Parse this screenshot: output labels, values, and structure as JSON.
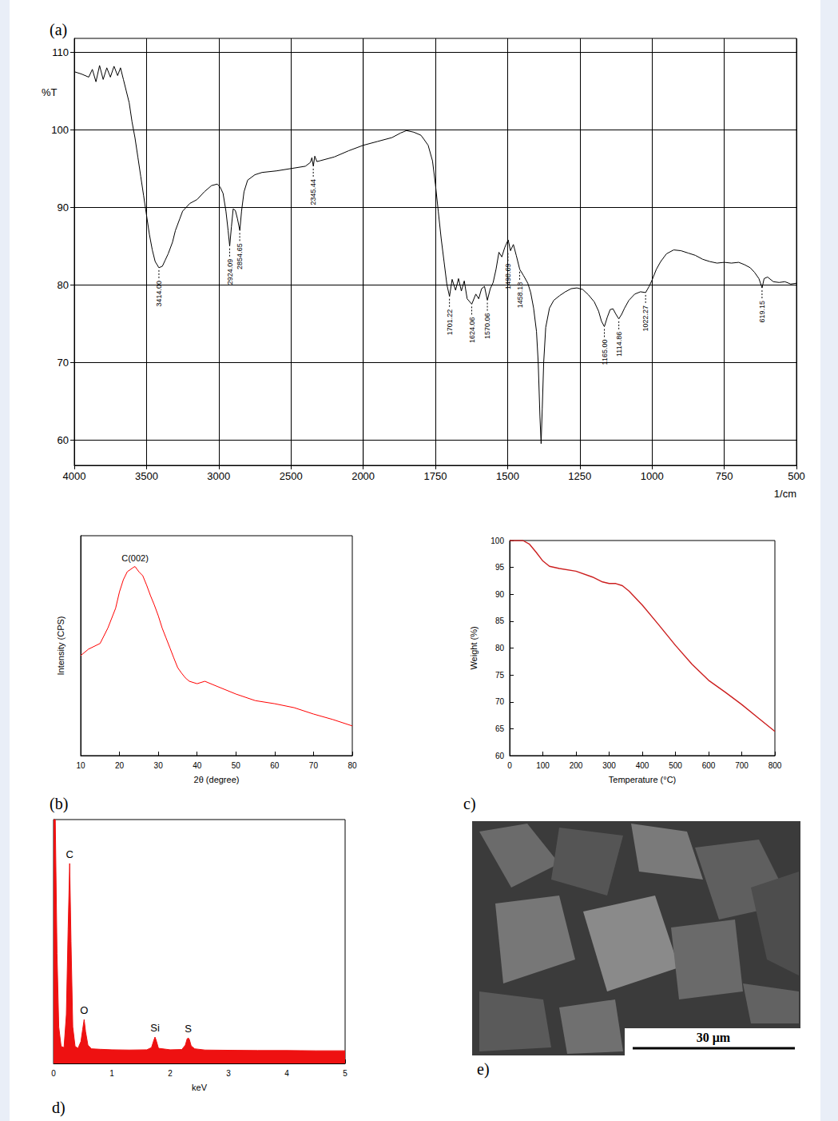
{
  "chart_data": [
    {
      "type": "line",
      "title": "(a)",
      "xlabel": "1/cm",
      "ylabel": "%T",
      "color": "#000000",
      "grid": true,
      "x": [
        4000,
        3950,
        3900,
        3875,
        3850,
        3825,
        3800,
        3775,
        3750,
        3725,
        3700,
        3680,
        3660,
        3640,
        3620,
        3600,
        3580,
        3560,
        3540,
        3520,
        3500,
        3480,
        3460,
        3440,
        3414,
        3390,
        3370,
        3350,
        3320,
        3300,
        3270,
        3250,
        3200,
        3150,
        3100,
        3050,
        3010,
        2990,
        2970,
        2950,
        2935,
        2924,
        2912,
        2900,
        2885,
        2870,
        2854,
        2842,
        2825,
        2800,
        2750,
        2700,
        2600,
        2500,
        2400,
        2365,
        2355,
        2345,
        2335,
        2320,
        2300,
        2200,
        2100,
        2000,
        1950,
        1900,
        1870,
        1850,
        1825,
        1800,
        1790,
        1775,
        1760,
        1750,
        1740,
        1730,
        1720,
        1710,
        1701,
        1692,
        1680,
        1670,
        1660,
        1650,
        1640,
        1624,
        1610,
        1600,
        1590,
        1580,
        1570,
        1560,
        1550,
        1540,
        1530,
        1520,
        1510,
        1498,
        1490,
        1480,
        1470,
        1458,
        1445,
        1430,
        1420,
        1410,
        1400,
        1394,
        1388,
        1384,
        1380,
        1375,
        1368,
        1355,
        1340,
        1320,
        1300,
        1280,
        1260,
        1240,
        1220,
        1200,
        1185,
        1175,
        1165,
        1155,
        1145,
        1135,
        1125,
        1115,
        1105,
        1095,
        1080,
        1060,
        1040,
        1022,
        1010,
        1000,
        985,
        970,
        950,
        925,
        900,
        875,
        850,
        825,
        800,
        775,
        750,
        725,
        700,
        680,
        660,
        645,
        630,
        619,
        612,
        600,
        580,
        560,
        540,
        520,
        500
      ],
      "values": [
        107.5,
        107.2,
        106.8,
        107.8,
        106.2,
        108.3,
        106.5,
        108,
        106.8,
        108.2,
        107,
        108,
        106.5,
        105,
        103.5,
        101,
        99,
        96.5,
        94,
        91.5,
        89,
        86.5,
        84.5,
        83,
        82.2,
        82.4,
        83.2,
        84,
        85.5,
        87,
        88.5,
        89.5,
        90.5,
        91,
        92,
        92.8,
        93,
        92.6,
        91.8,
        89.5,
        87,
        85,
        87.5,
        89.8,
        89.6,
        88.5,
        87,
        89.5,
        92,
        93.5,
        94.2,
        94.5,
        94.7,
        95,
        95.3,
        95.8,
        96.4,
        95.3,
        96.6,
        95.9,
        96,
        96.5,
        97.3,
        98,
        98.5,
        99,
        99.6,
        99.9,
        99.7,
        99.3,
        98.8,
        98,
        96,
        93,
        89.5,
        86,
        83,
        80,
        78.5,
        80.7,
        79.3,
        80.8,
        79.2,
        80.5,
        78.2,
        77.5,
        78.8,
        78.2,
        79.5,
        79.8,
        78,
        79.5,
        80.3,
        82,
        84.2,
        83.6,
        84.8,
        85.8,
        84.4,
        85.2,
        83.8,
        82,
        81.2,
        80.2,
        79,
        77,
        74,
        70,
        63,
        59.5,
        64,
        70,
        74.5,
        77,
        78,
        78.6,
        79.1,
        79.5,
        79.6,
        79.4,
        78.7,
        77.8,
        76.6,
        75.3,
        74.6,
        75.8,
        76.8,
        76.9,
        76.2,
        75.6,
        76.2,
        77,
        78,
        78.8,
        79.1,
        79,
        79.8,
        80.6,
        82,
        83,
        84,
        84.5,
        84.4,
        84.1,
        83.8,
        83.3,
        83,
        82.8,
        82.9,
        82.8,
        82.9,
        82.6,
        82.2,
        81.6,
        80.8,
        79.6,
        80.8,
        81,
        80.4,
        80.3,
        80.4,
        80.1,
        80.2
      ],
      "xlim": [
        4000,
        500
      ],
      "xticks": [
        4000,
        3500,
        3000,
        2500,
        2000,
        1750,
        1500,
        1250,
        1000,
        750,
        500
      ],
      "ylim": [
        56.7,
        111.8
      ],
      "yticks": [
        60,
        70,
        80,
        90,
        100,
        110
      ],
      "annotations": [
        {
          "x": 3414.0,
          "y": 82.2,
          "label": "3414.00"
        },
        {
          "x": 2924.09,
          "y": 85,
          "label": "2924.09"
        },
        {
          "x": 2854.65,
          "y": 87,
          "label": "2854.65"
        },
        {
          "x": 2345.44,
          "y": 95.3,
          "label": "2345.44"
        },
        {
          "x": 1701.22,
          "y": 78.5,
          "label": "1701.22"
        },
        {
          "x": 1624.06,
          "y": 77.5,
          "label": "1624.06"
        },
        {
          "x": 1570.06,
          "y": 78,
          "label": "1570.06"
        },
        {
          "x": 1498.69,
          "y": 84.4,
          "label": "1498.69"
        },
        {
          "x": 1458.18,
          "y": 82,
          "label": "1458.18"
        },
        {
          "x": 1165.0,
          "y": 74.6,
          "label": "1165.00"
        },
        {
          "x": 1114.86,
          "y": 75.6,
          "label": "1114.86"
        },
        {
          "x": 1022.27,
          "y": 79,
          "label": "1022.27"
        },
        {
          "x": 619.15,
          "y": 79.6,
          "label": "619.15"
        }
      ]
    },
    {
      "type": "line",
      "title": "(b)",
      "xlabel": "2θ (degree)",
      "ylabel": "Intensity (CPS)",
      "color": "#ff0000",
      "grid": false,
      "tick_labels": "x",
      "x": [
        10,
        12,
        15,
        17,
        19,
        20,
        21,
        22,
        23.5,
        24,
        25,
        26,
        27,
        28,
        29,
        30,
        31,
        32,
        33,
        34,
        35,
        36,
        37,
        38,
        40,
        42,
        45,
        50,
        55,
        60,
        65,
        70,
        75,
        80
      ],
      "values": [
        45.5,
        48.4,
        51,
        58,
        67,
        74.5,
        80,
        83.6,
        85.5,
        86,
        83.6,
        81.8,
        77.5,
        72.7,
        68.4,
        63.6,
        58,
        53.5,
        49,
        44.4,
        40,
        37.5,
        35.3,
        33.8,
        32.7,
        33.8,
        31.6,
        28,
        25,
        23.6,
        21.8,
        18.9,
        16.4,
        13.5
      ],
      "xlim": [
        10,
        80
      ],
      "xticks": [
        10,
        20,
        30,
        40,
        50,
        60,
        70,
        80
      ],
      "ylim": [
        0,
        100
      ],
      "annotations": [
        {
          "x": 24,
          "y": 86,
          "label": "C(002)"
        }
      ]
    },
    {
      "type": "line",
      "title": "c)",
      "xlabel": "Temperature (°C)",
      "ylabel": "Weight (%)",
      "color": "#cc1f1f",
      "grid": false,
      "x": [
        0,
        20,
        40,
        60,
        80,
        100,
        120,
        150,
        200,
        250,
        280,
        300,
        320,
        340,
        360,
        400,
        450,
        500,
        550,
        600,
        650,
        700,
        750,
        800
      ],
      "values": [
        100,
        100,
        100,
        99.3,
        97.8,
        96.2,
        95.2,
        94.8,
        94.3,
        93.2,
        92.3,
        92,
        92,
        91.6,
        90.6,
        88,
        84.3,
        80.5,
        77,
        74,
        71.8,
        69.5,
        67,
        64.5
      ],
      "xlim": [
        0,
        800
      ],
      "xticks": [
        0,
        100,
        200,
        300,
        400,
        500,
        600,
        700,
        800
      ],
      "ylim": [
        60,
        100
      ],
      "yticks": [
        60,
        65,
        70,
        75,
        80,
        85,
        90,
        95,
        100
      ]
    },
    {
      "type": "area",
      "title": "d)",
      "xlabel": "keV",
      "color": "#ee1111",
      "grid": false,
      "tick_labels": "x",
      "x": [
        0,
        0.03,
        0.06,
        0.09,
        0.13,
        0.18,
        0.22,
        0.25,
        0.277,
        0.3,
        0.33,
        0.37,
        0.42,
        0.47,
        0.5,
        0.525,
        0.55,
        0.59,
        0.65,
        0.8,
        1,
        1.3,
        1.6,
        1.68,
        1.72,
        1.74,
        1.76,
        1.8,
        2,
        2.2,
        2.26,
        2.29,
        2.31,
        2.33,
        2.36,
        2.42,
        2.6,
        3,
        3.5,
        4,
        4.5,
        5
      ],
      "values": [
        100,
        100,
        45,
        15,
        7,
        6.5,
        20,
        55,
        82,
        50,
        15,
        7,
        6.2,
        9,
        14,
        18,
        13,
        7.5,
        6,
        5.8,
        5.6,
        5.5,
        5.6,
        6.5,
        9.5,
        10.8,
        9.5,
        6.2,
        5.6,
        5.7,
        7.5,
        10,
        10.5,
        9.8,
        7.2,
        6,
        5.5,
        5.4,
        5.3,
        5.3,
        5.2,
        5.2
      ],
      "xlim": [
        0,
        5
      ],
      "xticks": [
        0,
        1,
        2,
        3,
        4,
        5
      ],
      "ylim": [
        0,
        100
      ],
      "annotations": [
        {
          "x": 0.277,
          "y": 82,
          "label": "C"
        },
        {
          "x": 0.525,
          "y": 18,
          "label": "O"
        },
        {
          "x": 1.74,
          "y": 10.8,
          "label": "Si"
        },
        {
          "x": 2.31,
          "y": 10.5,
          "label": "S"
        }
      ]
    }
  ],
  "image": {
    "title": "e)",
    "scale_bar": "30 μm"
  }
}
